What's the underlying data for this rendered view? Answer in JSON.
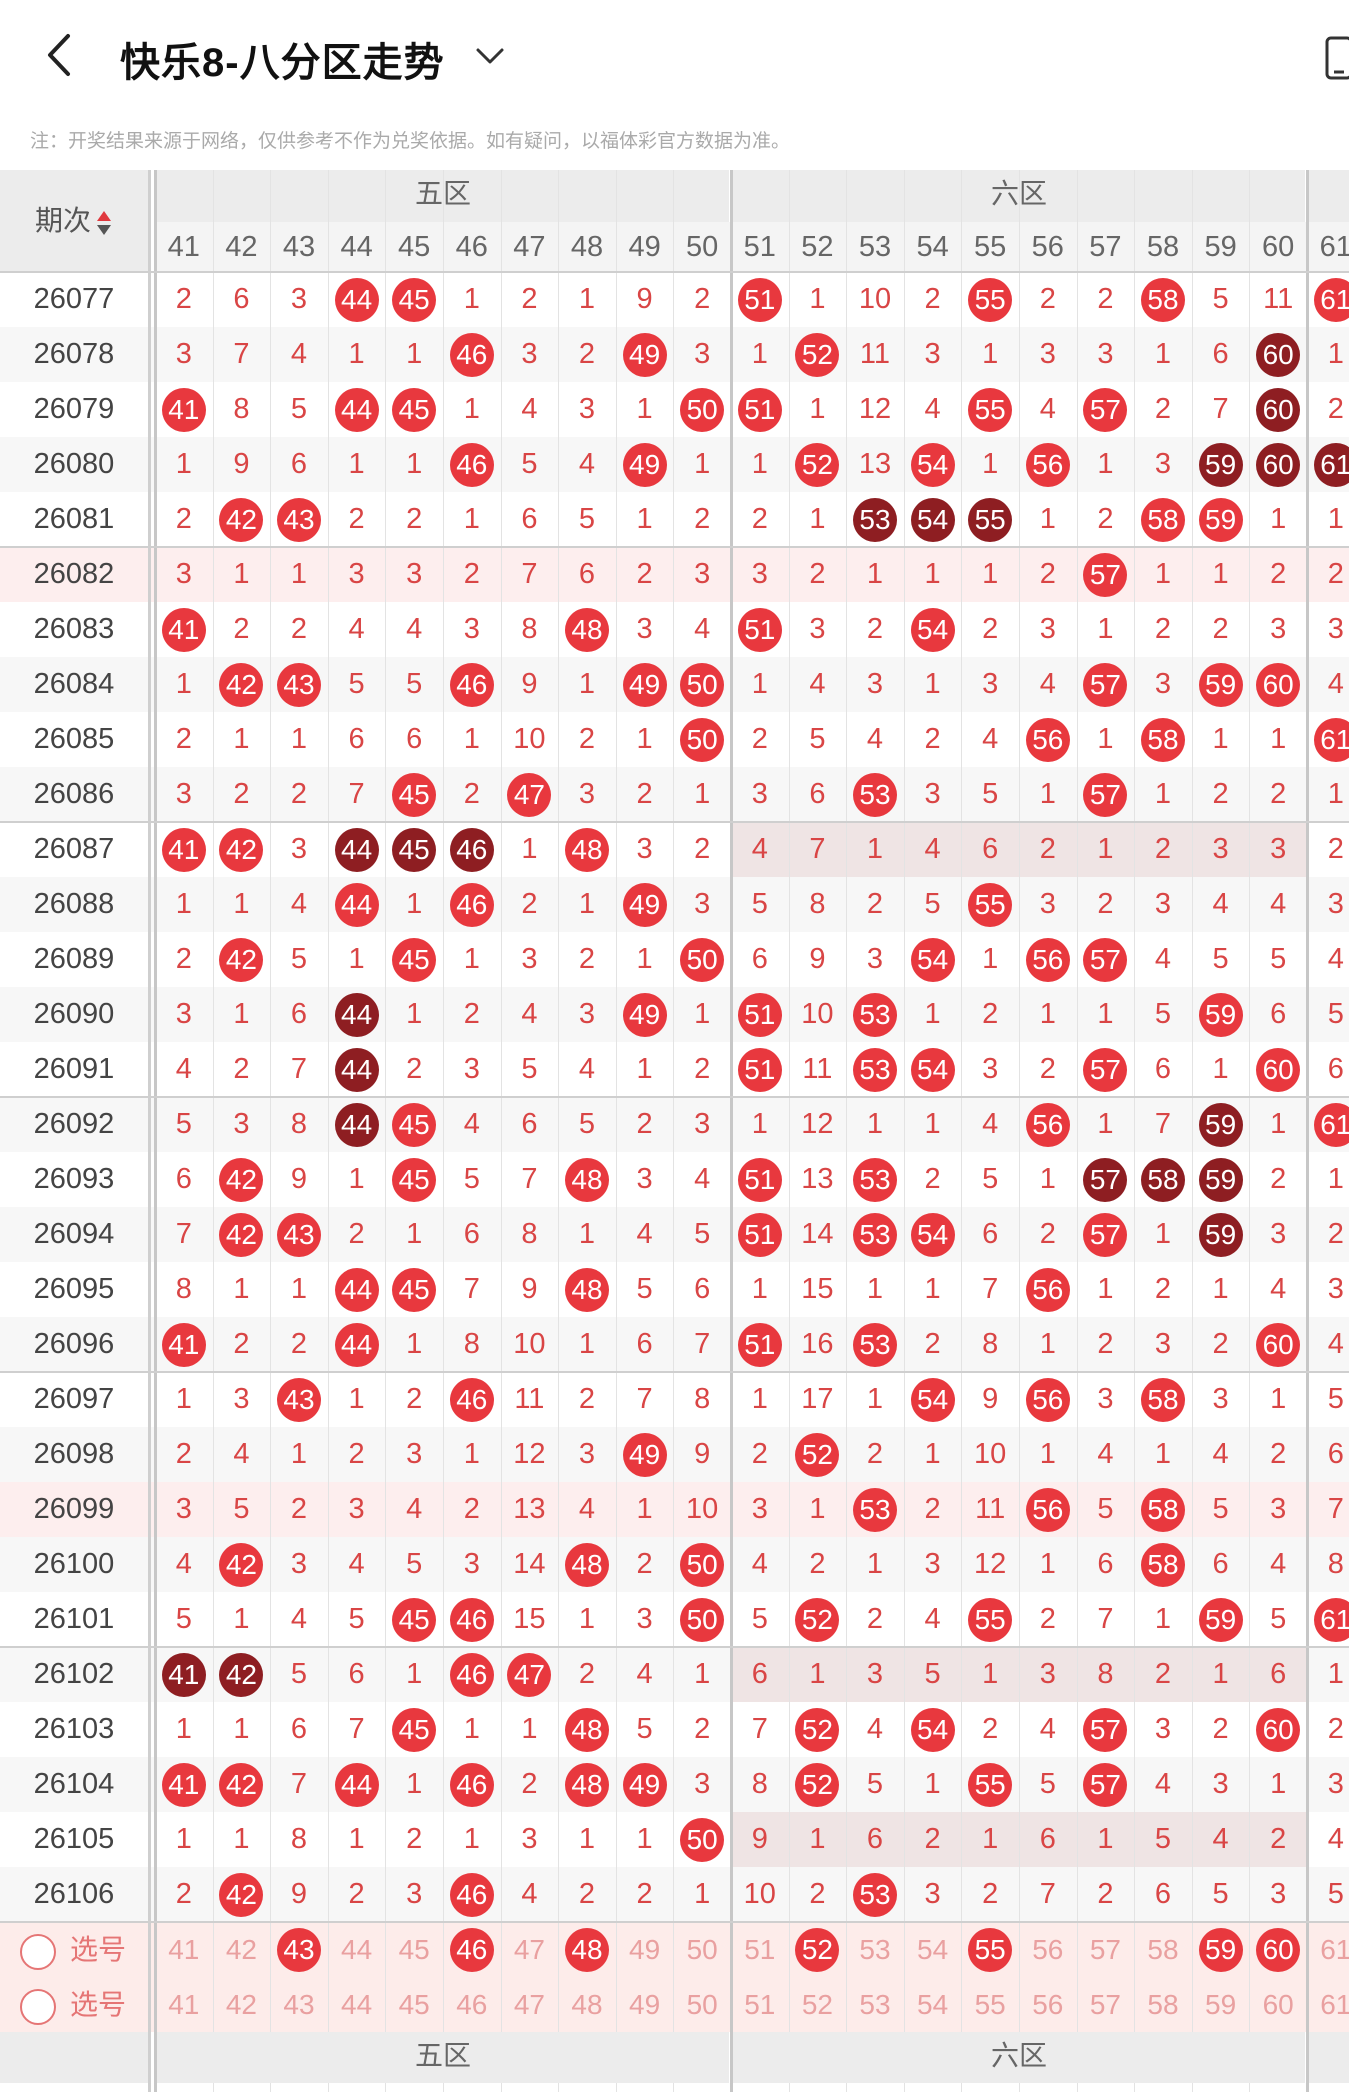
{
  "header": {
    "title": "快乐8-八分区走势",
    "back_icon": "chevron-left-icon",
    "dropdown_icon": "chevron-down-icon",
    "device_icon": "phone-icon"
  },
  "notice": "注：开奖结果来源于网络，仅供参考不作为兑奖依据。如有疑问，以福体彩官方数据为准。",
  "table": {
    "period_header": "期次",
    "sort_icon": "sort-updown-icon",
    "zones": [
      {
        "label": "五区",
        "numbers": [
          "41",
          "42",
          "43",
          "44",
          "45",
          "46",
          "47",
          "48",
          "49",
          "50"
        ]
      },
      {
        "label": "六区",
        "numbers": [
          "51",
          "52",
          "53",
          "54",
          "55",
          "56",
          "57",
          "58",
          "59",
          "60"
        ]
      },
      {
        "label": "",
        "numbers": [
          "61"
        ]
      }
    ],
    "rows": [
      {
        "period": "26077",
        "cells": [
          "2",
          "6",
          "3",
          "44",
          "45",
          "1",
          "2",
          "1",
          "9",
          "2",
          "51",
          "1",
          "10",
          "2",
          "55",
          "2",
          "2",
          "58",
          "5",
          "11",
          "61"
        ],
        "hits": [
          3,
          4,
          10,
          14,
          17,
          20
        ],
        "dark": []
      },
      {
        "period": "26078",
        "cells": [
          "3",
          "7",
          "4",
          "1",
          "1",
          "46",
          "3",
          "2",
          "49",
          "3",
          "1",
          "52",
          "11",
          "3",
          "1",
          "3",
          "3",
          "1",
          "6",
          "60",
          "1"
        ],
        "hits": [
          5,
          8,
          11,
          19
        ],
        "dark": [
          19
        ]
      },
      {
        "period": "26079",
        "cells": [
          "41",
          "8",
          "5",
          "44",
          "45",
          "1",
          "4",
          "3",
          "1",
          "50",
          "51",
          "1",
          "12",
          "4",
          "55",
          "4",
          "57",
          "2",
          "7",
          "60",
          "2"
        ],
        "hits": [
          0,
          3,
          4,
          9,
          10,
          14,
          16,
          19
        ],
        "dark": [
          19
        ]
      },
      {
        "period": "26080",
        "cells": [
          "1",
          "9",
          "6",
          "1",
          "1",
          "46",
          "5",
          "4",
          "49",
          "1",
          "1",
          "52",
          "13",
          "54",
          "1",
          "56",
          "1",
          "3",
          "59",
          "60",
          "61"
        ],
        "hits": [
          5,
          8,
          11,
          13,
          15,
          18,
          19,
          20
        ],
        "dark": [
          18,
          19,
          20
        ]
      },
      {
        "period": "26081",
        "cells": [
          "2",
          "42",
          "43",
          "2",
          "2",
          "1",
          "6",
          "5",
          "1",
          "2",
          "2",
          "1",
          "53",
          "54",
          "55",
          "1",
          "2",
          "58",
          "59",
          "1",
          "1"
        ],
        "hits": [
          1,
          2,
          12,
          13,
          14,
          17,
          18
        ],
        "dark": [
          12,
          13,
          14
        ]
      },
      {
        "period": "26082",
        "cells": [
          "3",
          "1",
          "1",
          "3",
          "3",
          "2",
          "7",
          "6",
          "2",
          "3",
          "3",
          "2",
          "1",
          "1",
          "1",
          "2",
          "57",
          "1",
          "1",
          "2",
          "2"
        ],
        "hits": [
          16
        ],
        "dark": []
      },
      {
        "period": "26083",
        "cells": [
          "41",
          "2",
          "2",
          "4",
          "4",
          "3",
          "8",
          "48",
          "3",
          "4",
          "51",
          "3",
          "2",
          "54",
          "2",
          "3",
          "1",
          "2",
          "2",
          "3",
          "3"
        ],
        "hits": [
          0,
          7,
          10,
          13
        ],
        "dark": []
      },
      {
        "period": "26084",
        "cells": [
          "1",
          "42",
          "43",
          "5",
          "5",
          "46",
          "9",
          "1",
          "49",
          "50",
          "1",
          "4",
          "3",
          "1",
          "3",
          "4",
          "57",
          "3",
          "59",
          "60",
          "4"
        ],
        "hits": [
          1,
          2,
          5,
          8,
          9,
          16,
          18,
          19
        ],
        "dark": []
      },
      {
        "period": "26085",
        "cells": [
          "2",
          "1",
          "1",
          "6",
          "6",
          "1",
          "10",
          "2",
          "1",
          "50",
          "2",
          "5",
          "4",
          "2",
          "4",
          "56",
          "1",
          "58",
          "1",
          "1",
          "61"
        ],
        "hits": [
          9,
          15,
          17,
          20
        ],
        "dark": []
      },
      {
        "period": "26086",
        "cells": [
          "3",
          "2",
          "2",
          "7",
          "45",
          "2",
          "47",
          "3",
          "2",
          "1",
          "3",
          "6",
          "53",
          "3",
          "5",
          "1",
          "57",
          "1",
          "2",
          "2",
          "1"
        ],
        "hits": [
          4,
          6,
          12,
          16
        ],
        "dark": []
      },
      {
        "period": "26087",
        "cells": [
          "41",
          "42",
          "3",
          "44",
          "45",
          "46",
          "1",
          "48",
          "3",
          "2",
          "4",
          "7",
          "1",
          "4",
          "6",
          "2",
          "1",
          "2",
          "3",
          "3",
          "2"
        ],
        "hits": [
          0,
          1,
          3,
          4,
          5,
          7
        ],
        "dark": [
          3,
          4,
          5
        ]
      },
      {
        "period": "26088",
        "cells": [
          "1",
          "1",
          "4",
          "44",
          "1",
          "46",
          "2",
          "1",
          "49",
          "3",
          "5",
          "8",
          "2",
          "5",
          "55",
          "3",
          "2",
          "3",
          "4",
          "4",
          "3"
        ],
        "hits": [
          3,
          5,
          8,
          14
        ],
        "dark": []
      },
      {
        "period": "26089",
        "cells": [
          "2",
          "42",
          "5",
          "1",
          "45",
          "1",
          "3",
          "2",
          "1",
          "50",
          "6",
          "9",
          "3",
          "54",
          "1",
          "56",
          "57",
          "4",
          "5",
          "5",
          "4"
        ],
        "hits": [
          1,
          4,
          9,
          13,
          15,
          16
        ],
        "dark": []
      },
      {
        "period": "26090",
        "cells": [
          "3",
          "1",
          "6",
          "44",
          "1",
          "2",
          "4",
          "3",
          "49",
          "1",
          "51",
          "10",
          "53",
          "1",
          "2",
          "1",
          "1",
          "5",
          "59",
          "6",
          "5"
        ],
        "hits": [
          3,
          8,
          10,
          12,
          18
        ],
        "dark": [
          3
        ]
      },
      {
        "period": "26091",
        "cells": [
          "4",
          "2",
          "7",
          "44",
          "2",
          "3",
          "5",
          "4",
          "1",
          "2",
          "51",
          "11",
          "53",
          "54",
          "3",
          "2",
          "57",
          "6",
          "1",
          "60",
          "6"
        ],
        "hits": [
          3,
          10,
          12,
          13,
          16,
          19
        ],
        "dark": [
          3
        ]
      },
      {
        "period": "26092",
        "cells": [
          "5",
          "3",
          "8",
          "44",
          "45",
          "4",
          "6",
          "5",
          "2",
          "3",
          "1",
          "12",
          "1",
          "1",
          "4",
          "56",
          "1",
          "7",
          "59",
          "1",
          "61"
        ],
        "hits": [
          3,
          4,
          15,
          18,
          20
        ],
        "dark": [
          3,
          18
        ]
      },
      {
        "period": "26093",
        "cells": [
          "6",
          "42",
          "9",
          "1",
          "45",
          "5",
          "7",
          "48",
          "3",
          "4",
          "51",
          "13",
          "53",
          "2",
          "5",
          "1",
          "57",
          "58",
          "59",
          "2",
          "1"
        ],
        "hits": [
          1,
          4,
          7,
          10,
          12,
          16,
          17,
          18
        ],
        "dark": [
          16,
          17,
          18
        ]
      },
      {
        "period": "26094",
        "cells": [
          "7",
          "42",
          "43",
          "2",
          "1",
          "6",
          "8",
          "1",
          "4",
          "5",
          "51",
          "14",
          "53",
          "54",
          "6",
          "2",
          "57",
          "1",
          "59",
          "3",
          "2"
        ],
        "hits": [
          1,
          2,
          10,
          12,
          13,
          16,
          18
        ],
        "dark": [
          18
        ]
      },
      {
        "period": "26095",
        "cells": [
          "8",
          "1",
          "1",
          "44",
          "45",
          "7",
          "9",
          "48",
          "5",
          "6",
          "1",
          "15",
          "1",
          "1",
          "7",
          "56",
          "1",
          "2",
          "1",
          "4",
          "3"
        ],
        "hits": [
          3,
          4,
          7,
          15
        ],
        "dark": []
      },
      {
        "period": "26096",
        "cells": [
          "41",
          "2",
          "2",
          "44",
          "1",
          "8",
          "10",
          "1",
          "6",
          "7",
          "51",
          "16",
          "53",
          "2",
          "8",
          "1",
          "2",
          "3",
          "2",
          "60",
          "4"
        ],
        "hits": [
          0,
          3,
          10,
          12,
          19
        ],
        "dark": []
      },
      {
        "period": "26097",
        "cells": [
          "1",
          "3",
          "43",
          "1",
          "2",
          "46",
          "11",
          "2",
          "7",
          "8",
          "1",
          "17",
          "1",
          "54",
          "9",
          "56",
          "3",
          "58",
          "3",
          "1",
          "5"
        ],
        "hits": [
          2,
          5,
          13,
          15,
          17
        ],
        "dark": []
      },
      {
        "period": "26098",
        "cells": [
          "2",
          "4",
          "1",
          "2",
          "3",
          "1",
          "12",
          "3",
          "49",
          "9",
          "2",
          "52",
          "2",
          "1",
          "10",
          "1",
          "4",
          "1",
          "4",
          "2",
          "6"
        ],
        "hits": [
          8,
          11
        ],
        "dark": []
      },
      {
        "period": "26099",
        "cells": [
          "3",
          "5",
          "2",
          "3",
          "4",
          "2",
          "13",
          "4",
          "1",
          "10",
          "3",
          "1",
          "53",
          "2",
          "11",
          "56",
          "5",
          "58",
          "5",
          "3",
          "7"
        ],
        "hits": [
          12,
          15,
          17
        ],
        "dark": []
      },
      {
        "period": "26100",
        "cells": [
          "4",
          "42",
          "3",
          "4",
          "5",
          "3",
          "14",
          "48",
          "2",
          "50",
          "4",
          "2",
          "1",
          "3",
          "12",
          "1",
          "6",
          "58",
          "6",
          "4",
          "8"
        ],
        "hits": [
          1,
          7,
          9,
          17
        ],
        "dark": []
      },
      {
        "period": "26101",
        "cells": [
          "5",
          "1",
          "4",
          "5",
          "45",
          "46",
          "15",
          "1",
          "3",
          "50",
          "5",
          "52",
          "2",
          "4",
          "55",
          "2",
          "7",
          "1",
          "59",
          "5",
          "61"
        ],
        "hits": [
          4,
          5,
          9,
          11,
          14,
          18,
          20
        ],
        "dark": []
      },
      {
        "period": "26102",
        "cells": [
          "41",
          "42",
          "5",
          "6",
          "1",
          "46",
          "47",
          "2",
          "4",
          "1",
          "6",
          "1",
          "3",
          "5",
          "1",
          "3",
          "8",
          "2",
          "1",
          "6",
          "1"
        ],
        "hits": [
          0,
          1,
          5,
          6
        ],
        "dark": [
          0,
          1
        ]
      },
      {
        "period": "26103",
        "cells": [
          "1",
          "1",
          "6",
          "7",
          "45",
          "1",
          "1",
          "48",
          "5",
          "2",
          "7",
          "52",
          "4",
          "54",
          "2",
          "4",
          "57",
          "3",
          "2",
          "60",
          "2"
        ],
        "hits": [
          4,
          7,
          11,
          13,
          16,
          19
        ],
        "dark": []
      },
      {
        "period": "26104",
        "cells": [
          "41",
          "42",
          "7",
          "44",
          "1",
          "46",
          "2",
          "48",
          "49",
          "3",
          "8",
          "52",
          "5",
          "1",
          "55",
          "5",
          "57",
          "4",
          "3",
          "1",
          "3"
        ],
        "hits": [
          0,
          1,
          3,
          5,
          7,
          8,
          11,
          14,
          16
        ],
        "dark": []
      },
      {
        "period": "26105",
        "cells": [
          "1",
          "1",
          "8",
          "1",
          "2",
          "1",
          "3",
          "1",
          "1",
          "50",
          "9",
          "1",
          "6",
          "2",
          "1",
          "6",
          "1",
          "5",
          "4",
          "2",
          "4"
        ],
        "hits": [
          9
        ],
        "dark": []
      },
      {
        "period": "26106",
        "cells": [
          "2",
          "42",
          "9",
          "2",
          "3",
          "46",
          "4",
          "2",
          "2",
          "1",
          "10",
          "2",
          "53",
          "3",
          "2",
          "7",
          "2",
          "6",
          "5",
          "3",
          "5"
        ],
        "hits": [
          1,
          5,
          12
        ],
        "dark": []
      }
    ],
    "pick_rows": [
      {
        "label": "选号",
        "selected": [
          2,
          5,
          7,
          11,
          14,
          18,
          19
        ]
      },
      {
        "label": "选号",
        "selected": []
      }
    ]
  },
  "colors": {
    "hit_red": "#e8383e",
    "dark_red": "#8e1e22",
    "miss_text": "#d94545",
    "annotation_blue": "#1f5fbf",
    "zone_bg": "#ececec"
  }
}
